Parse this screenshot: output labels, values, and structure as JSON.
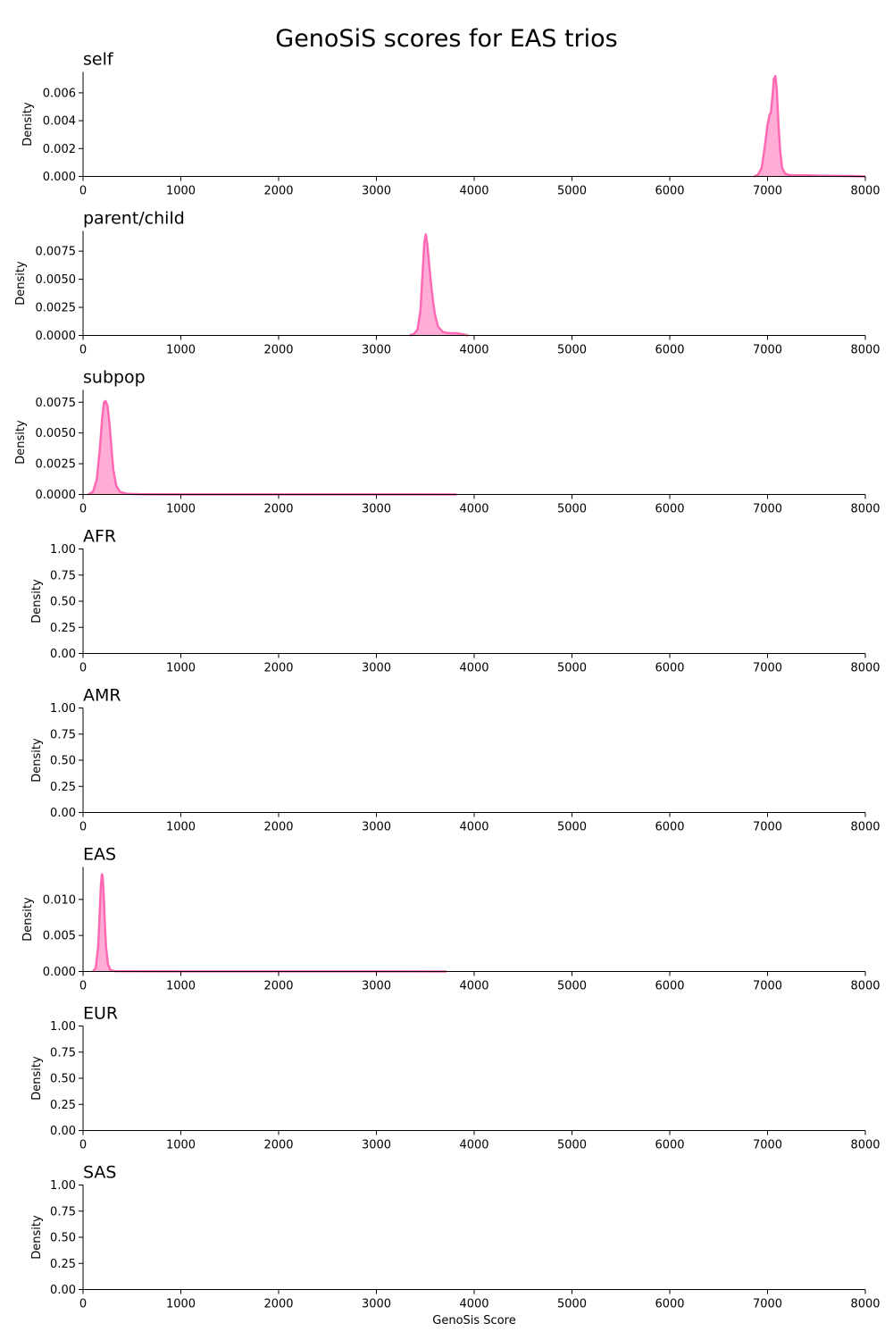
{
  "title": "GenoSiS scores for EAS trios",
  "xlabel": "GenoSis Score",
  "ylabel": "Density",
  "colors": {
    "line": "#ff69b4",
    "fill": "#ff69b4",
    "axis": "#000000"
  },
  "chart_data": {
    "type": "area",
    "xlim": [
      0,
      8000
    ],
    "x_ticks": [
      0,
      1000,
      2000,
      3000,
      4000,
      5000,
      6000,
      7000,
      8000
    ],
    "panels": [
      {
        "title": "self",
        "ylim": [
          0,
          0.0075
        ],
        "y_ticks": [
          "0.000",
          "0.002",
          "0.004",
          "0.006"
        ],
        "series": {
          "x": [
            6860,
            6900,
            6940,
            6970,
            7000,
            7020,
            7035,
            7050,
            7065,
            7080,
            7095,
            7110,
            7130,
            7150,
            7180,
            7220,
            7300,
            7400,
            7550,
            7700,
            7850,
            8000
          ],
          "y": [
            0,
            0.0001,
            0.0006,
            0.002,
            0.0037,
            0.0044,
            0.0046,
            0.0057,
            0.007,
            0.0072,
            0.0062,
            0.004,
            0.0018,
            0.0006,
            0.0002,
            0.0001,
            7e-05,
            8e-05,
            5e-05,
            4e-05,
            3e-05,
            0
          ]
        }
      },
      {
        "title": "parent/child",
        "ylim": [
          0,
          0.0093
        ],
        "y_ticks": [
          "0.0000",
          "0.0025",
          "0.0050",
          "0.0075"
        ],
        "series": {
          "x": [
            3340,
            3380,
            3420,
            3450,
            3470,
            3490,
            3505,
            3520,
            3540,
            3560,
            3580,
            3600,
            3630,
            3680,
            3750,
            3820,
            3880,
            3940
          ],
          "y": [
            0,
            0.0001,
            0.0005,
            0.0022,
            0.0052,
            0.0083,
            0.009,
            0.0082,
            0.0063,
            0.0045,
            0.003,
            0.0018,
            0.0008,
            0.0003,
            0.0002,
            0.0002,
            0.0001,
            0
          ]
        }
      },
      {
        "title": "subpop",
        "ylim": [
          0,
          0.0085
        ],
        "y_ticks": [
          "0.0000",
          "0.0025",
          "0.0050",
          "0.0075"
        ],
        "series": {
          "x": [
            50,
            100,
            140,
            170,
            195,
            215,
            230,
            250,
            270,
            290,
            310,
            340,
            380,
            450,
            600,
            1000,
            2000,
            3000,
            3820
          ],
          "y": [
            0,
            0.0002,
            0.0012,
            0.0035,
            0.0062,
            0.0075,
            0.0076,
            0.0072,
            0.0058,
            0.0038,
            0.002,
            0.0007,
            0.0002,
            5e-05,
            2e-05,
            1e-05,
            1e-05,
            1e-05,
            0
          ]
        }
      },
      {
        "title": "AFR",
        "ylim": [
          0,
          1
        ],
        "y_ticks": [
          "0.00",
          "0.25",
          "0.50",
          "0.75",
          "1.00"
        ],
        "series": null
      },
      {
        "title": "AMR",
        "ylim": [
          0,
          1
        ],
        "y_ticks": [
          "0.00",
          "0.25",
          "0.50",
          "0.75",
          "1.00"
        ],
        "series": null
      },
      {
        "title": "EAS",
        "ylim": [
          0,
          0.0145
        ],
        "y_ticks": [
          "0.000",
          "0.005",
          "0.010"
        ],
        "series": {
          "x": [
            100,
            130,
            155,
            170,
            183,
            193,
            200,
            210,
            222,
            235,
            255,
            280,
            330,
            500,
            1000,
            2000,
            3000,
            3720
          ],
          "y": [
            0,
            0.0005,
            0.0035,
            0.008,
            0.012,
            0.0135,
            0.0132,
            0.011,
            0.007,
            0.0035,
            0.001,
            0.0002,
            5e-05,
            2e-05,
            1e-05,
            1e-05,
            1e-05,
            0
          ]
        }
      },
      {
        "title": "EUR",
        "ylim": [
          0,
          1
        ],
        "y_ticks": [
          "0.00",
          "0.25",
          "0.50",
          "0.75",
          "1.00"
        ],
        "series": null
      },
      {
        "title": "SAS",
        "ylim": [
          0,
          1
        ],
        "y_ticks": [
          "0.00",
          "0.25",
          "0.50",
          "0.75",
          "1.00"
        ],
        "series": null
      }
    ]
  }
}
